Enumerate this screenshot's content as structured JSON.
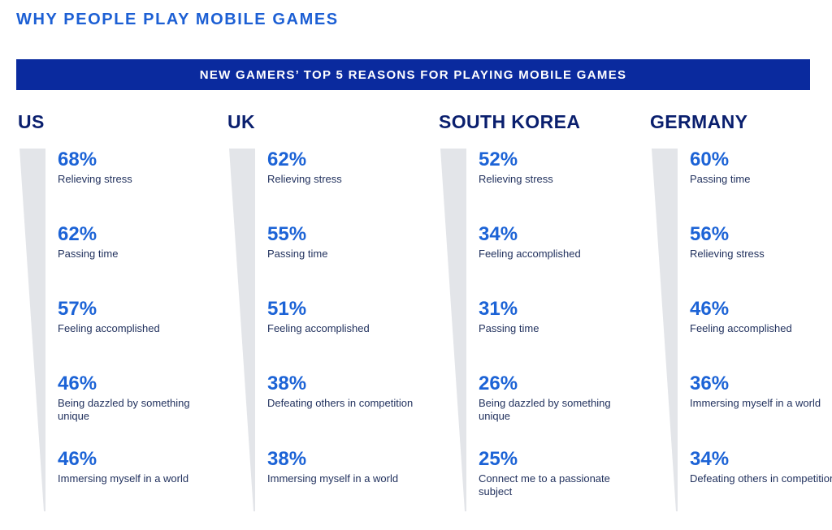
{
  "title": "WHY PEOPLE PLAY MOBILE GAMES",
  "banner": "NEW GAMERS’ TOP 5 REASONS FOR PLAYING MOBILE GAMES",
  "colors": {
    "banner_bg": "#0a2a9e",
    "title": "#1c5fd4",
    "percent": "#1c63d6",
    "country": "#0a1f6e",
    "wedge": "#e3e5e9"
  },
  "chart_data": {
    "type": "table",
    "title": "NEW GAMERS’ TOP 5 REASONS FOR PLAYING MOBILE GAMES",
    "unit": "%",
    "countries": [
      {
        "name": "US",
        "reasons": [
          {
            "percent": "68%",
            "value": 68,
            "label": "Relieving stress"
          },
          {
            "percent": "62%",
            "value": 62,
            "label": "Passing time"
          },
          {
            "percent": "57%",
            "value": 57,
            "label": "Feeling accomplished"
          },
          {
            "percent": "46%",
            "value": 46,
            "label": "Being dazzled by something unique"
          },
          {
            "percent": "46%",
            "value": 46,
            "label": "Immersing myself in a world"
          }
        ]
      },
      {
        "name": "UK",
        "reasons": [
          {
            "percent": "62%",
            "value": 62,
            "label": "Relieving stress"
          },
          {
            "percent": "55%",
            "value": 55,
            "label": "Passing time"
          },
          {
            "percent": "51%",
            "value": 51,
            "label": "Feeling accomplished"
          },
          {
            "percent": "38%",
            "value": 38,
            "label": "Defeating others in competition"
          },
          {
            "percent": "38%",
            "value": 38,
            "label": "Immersing myself in a world"
          }
        ]
      },
      {
        "name": "SOUTH KOREA",
        "reasons": [
          {
            "percent": "52%",
            "value": 52,
            "label": "Relieving stress"
          },
          {
            "percent": "34%",
            "value": 34,
            "label": "Feeling accomplished"
          },
          {
            "percent": "31%",
            "value": 31,
            "label": "Passing time"
          },
          {
            "percent": "26%",
            "value": 26,
            "label": "Being dazzled by something unique"
          },
          {
            "percent": "25%",
            "value": 25,
            "label": "Connect me to a passionate subject"
          }
        ]
      },
      {
        "name": "GERMANY",
        "reasons": [
          {
            "percent": "60%",
            "value": 60,
            "label": "Passing time"
          },
          {
            "percent": "56%",
            "value": 56,
            "label": "Relieving stress"
          },
          {
            "percent": "46%",
            "value": 46,
            "label": "Feeling accomplished"
          },
          {
            "percent": "36%",
            "value": 36,
            "label": "Immersing myself in a world"
          },
          {
            "percent": "34%",
            "value": 34,
            "label": "Defeating others in competition"
          }
        ]
      }
    ]
  }
}
